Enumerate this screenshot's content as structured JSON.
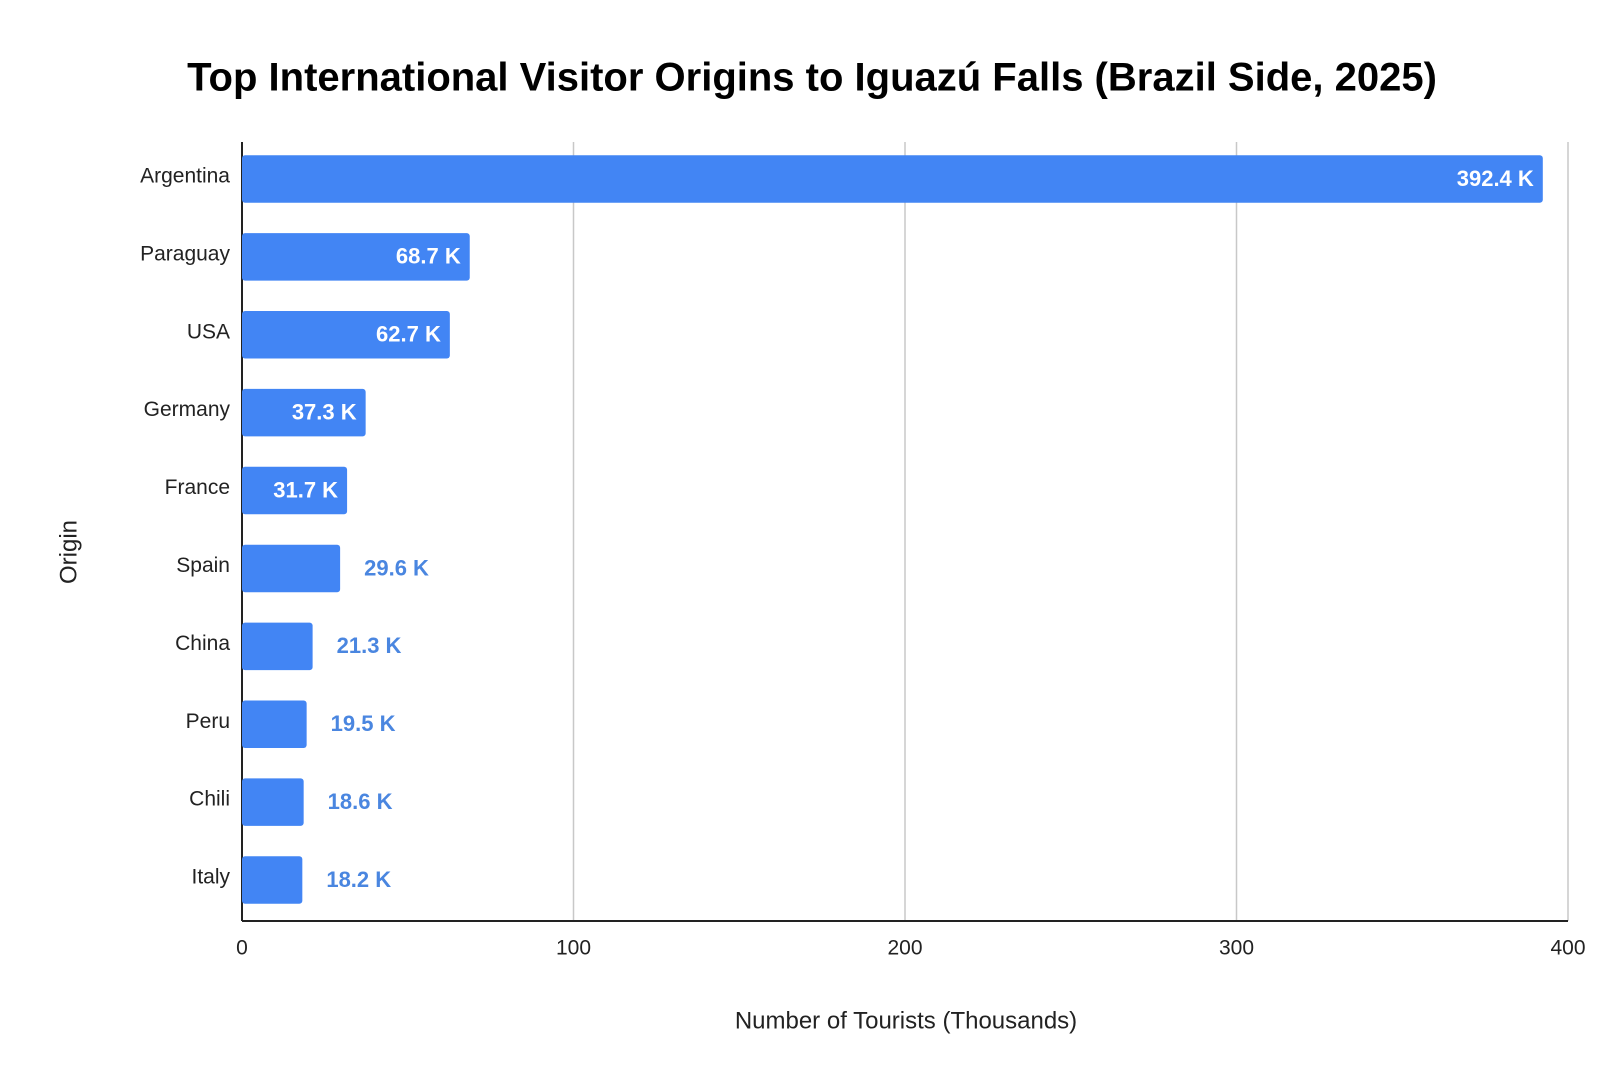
{
  "chart_data": {
    "type": "bar",
    "orientation": "horizontal",
    "title": "Top International Visitor Origins to Iguazú Falls (Brazil Side, 2025)",
    "x_label": "Number of Tourists (Thousands)",
    "y_label": "Origin",
    "categories": [
      "Argentina",
      "Paraguay",
      "USA",
      "Germany",
      "France",
      "Spain",
      "China",
      "Peru",
      "Chili",
      "Italy"
    ],
    "values": [
      392.4,
      68.7,
      62.7,
      37.3,
      31.7,
      29.6,
      21.3,
      19.5,
      18.6,
      18.2
    ],
    "value_labels": [
      "392.4 K",
      "68.7 K",
      "62.7 K",
      "37.3 K",
      "31.7 K",
      "29.6 K",
      "21.3 K",
      "19.5 K",
      "18.6 K",
      "18.2 K"
    ],
    "color": "#4285f4",
    "xlim": [
      0,
      400
    ],
    "xticks": [
      0,
      100,
      200,
      300,
      400
    ],
    "grid": true
  }
}
